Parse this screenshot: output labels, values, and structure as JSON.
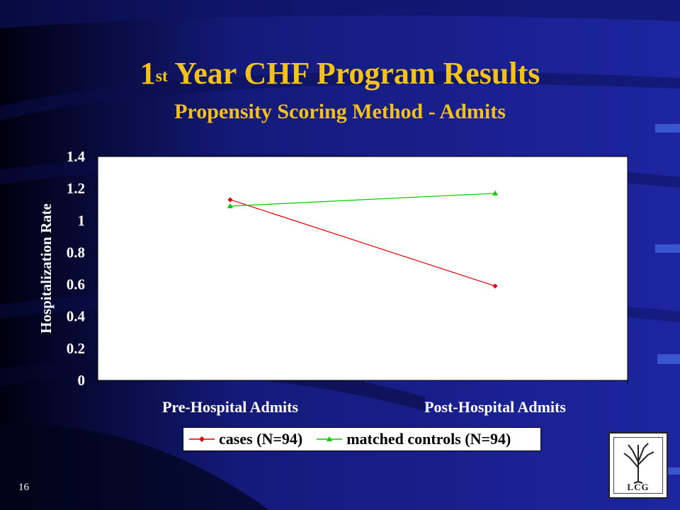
{
  "slide": {
    "title_main": "1",
    "title_sup": "st",
    "title_rest": " Year CHF Program Results",
    "subtitle": "Propensity Scoring Method - Admits",
    "page_number": "16",
    "logo_text": "LCG"
  },
  "colors": {
    "background": "#1a1f8c",
    "title": "#f2c21a",
    "cases": "#e00000",
    "controls": "#00cc00"
  },
  "chart_data": {
    "type": "line",
    "categories": [
      "Pre-Hospital Admits",
      "Post-Hospital Admits"
    ],
    "series": [
      {
        "name": "cases (N=94)",
        "values": [
          1.13,
          0.59
        ],
        "labels": [
          "1.13",
          "0.59"
        ],
        "color": "#e00000",
        "marker": "diamond"
      },
      {
        "name": "matched controls (N=94)",
        "values": [
          1.09,
          1.17
        ],
        "labels": [
          "1.09",
          "1.17"
        ],
        "color": "#00cc00",
        "marker": "triangle"
      }
    ],
    "ylabel": "Hospitalization Rate",
    "ylim": [
      0,
      1.4
    ],
    "yticks": [
      "0",
      "0.2",
      "0.4",
      "0.6",
      "0.8",
      "1",
      "1.2",
      "1.4"
    ],
    "grid": false,
    "legend_position": "bottom"
  }
}
